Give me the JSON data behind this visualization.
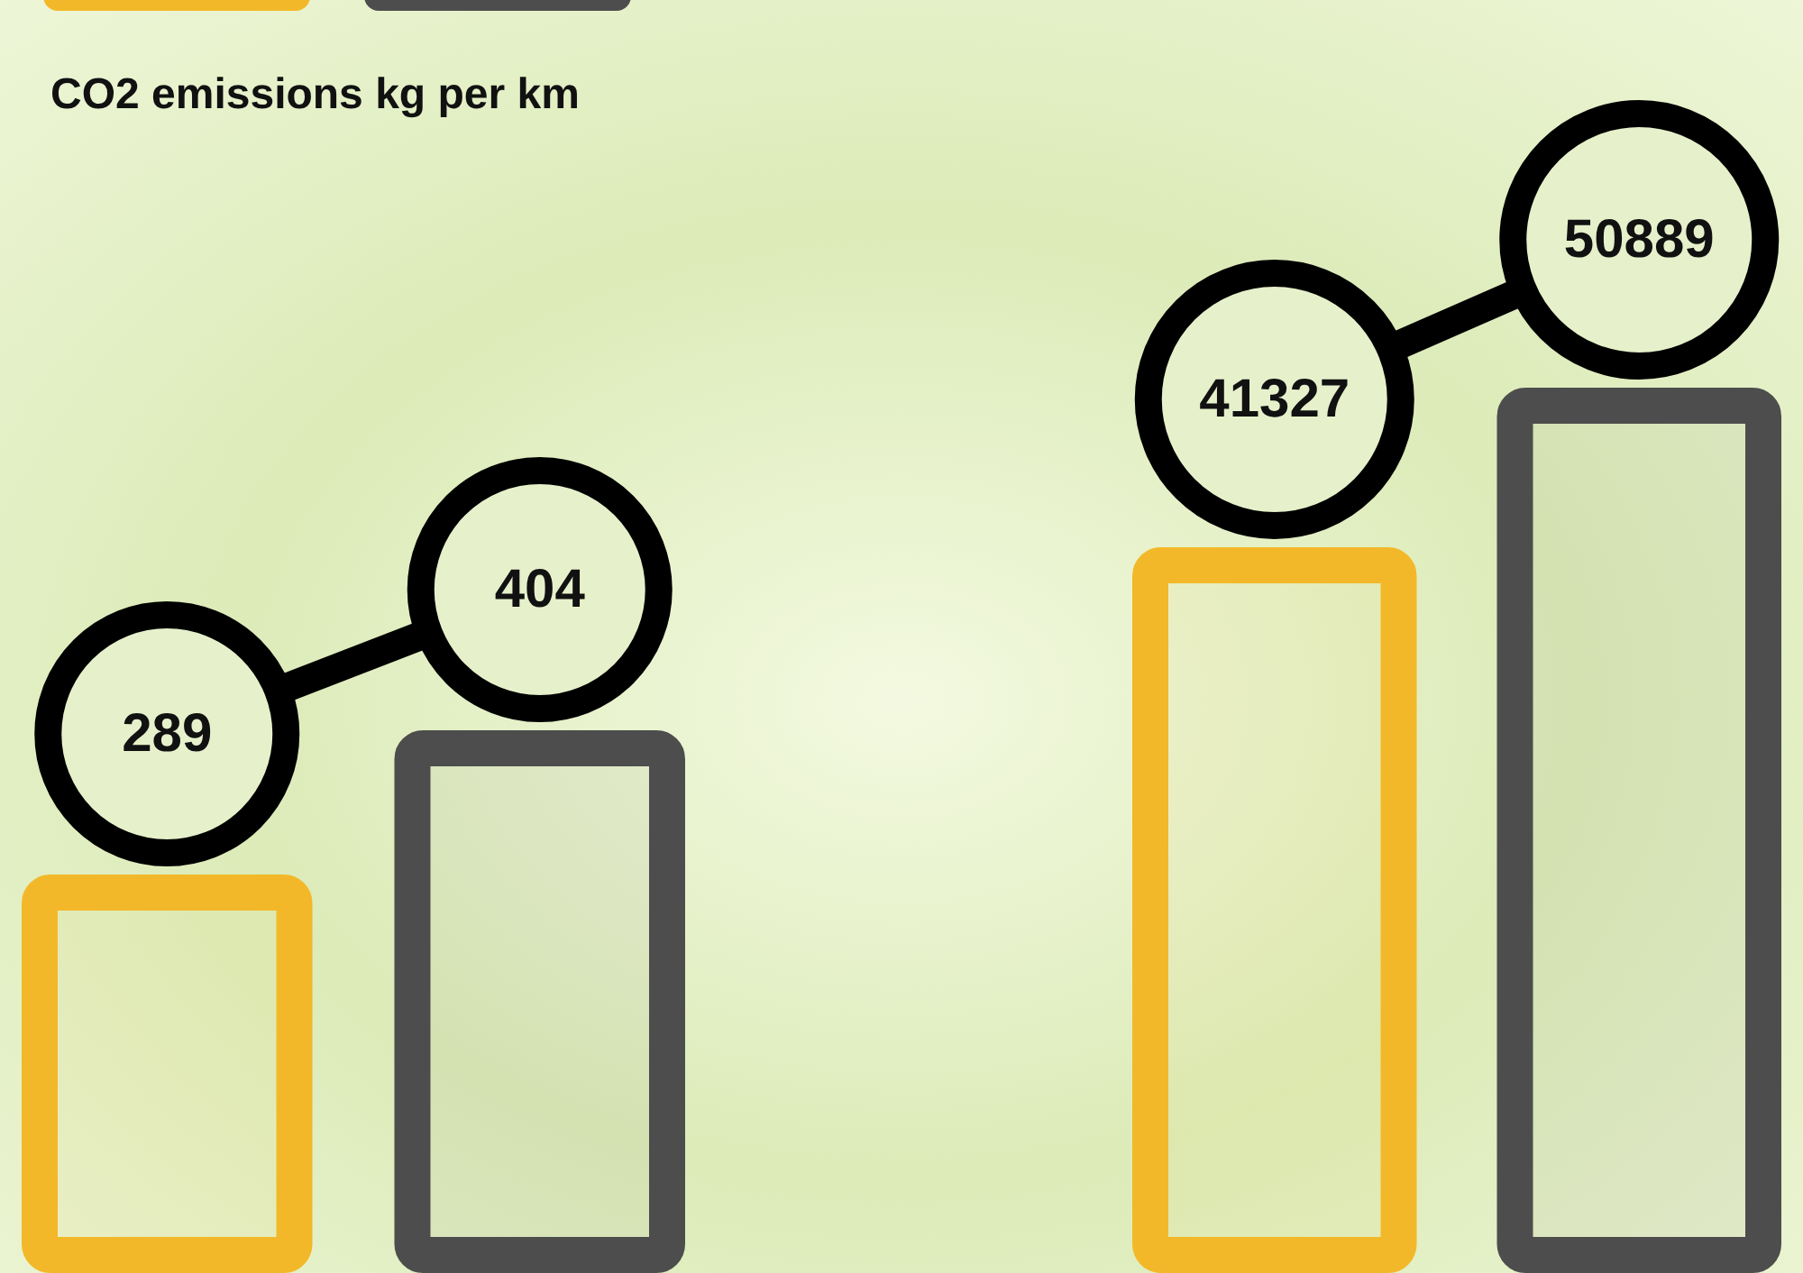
{
  "chart_data": [
    {
      "type": "bar",
      "title": "CO2 emissions kg per km",
      "categories": [
        null,
        null
      ],
      "values": [
        289,
        404
      ],
      "colors": [
        "#f3b829",
        "#4d4d4d"
      ],
      "data_labels": true
    },
    {
      "type": "bar",
      "categories": [
        null,
        null
      ],
      "values": [
        41327,
        50889
      ],
      "colors": [
        "#f3b829",
        "#4d4d4d"
      ],
      "data_labels": true
    }
  ]
}
